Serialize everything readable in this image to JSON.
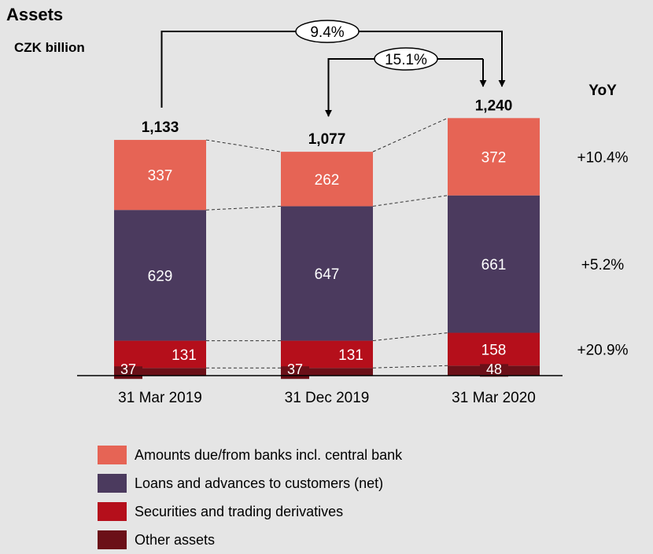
{
  "title": "Assets",
  "subtitle": "CZK billion",
  "yoy_header": "YoY",
  "chart_data": {
    "type": "bar",
    "stacked": true,
    "categories": [
      "31 Mar 2019",
      "31 Dec 2019",
      "31 Mar 2020"
    ],
    "totals": [
      "1,133",
      "1,077",
      "1,240"
    ],
    "series": [
      {
        "name": "Other assets",
        "color": "#6b1018",
        "values": [
          37,
          37,
          48
        ],
        "yoy": ""
      },
      {
        "name": "Securities and trading derivatives",
        "color": "#b50f1b",
        "values": [
          131,
          131,
          158
        ],
        "yoy": "+20.9%"
      },
      {
        "name": "Loans and advances to customers (net)",
        "color": "#4b3a5e",
        "values": [
          629,
          647,
          661
        ],
        "yoy": "+5.2%"
      },
      {
        "name": "Amounts due/from banks incl. central bank",
        "color": "#e66455",
        "values": [
          337,
          262,
          372
        ],
        "yoy": "+10.4%"
      }
    ],
    "growth_annotations": [
      {
        "label": "9.4%",
        "from": "31 Mar 2019",
        "to": "31 Mar 2020"
      },
      {
        "label": "15.1%",
        "from": "31 Dec 2019",
        "to": "31 Mar 2020"
      }
    ],
    "legend_order": [
      "Amounts due/from banks incl. central bank",
      "Loans and advances to customers (net)",
      "Securities and trading derivatives",
      "Other assets"
    ],
    "legend_position": "bottom",
    "grid": false
  }
}
